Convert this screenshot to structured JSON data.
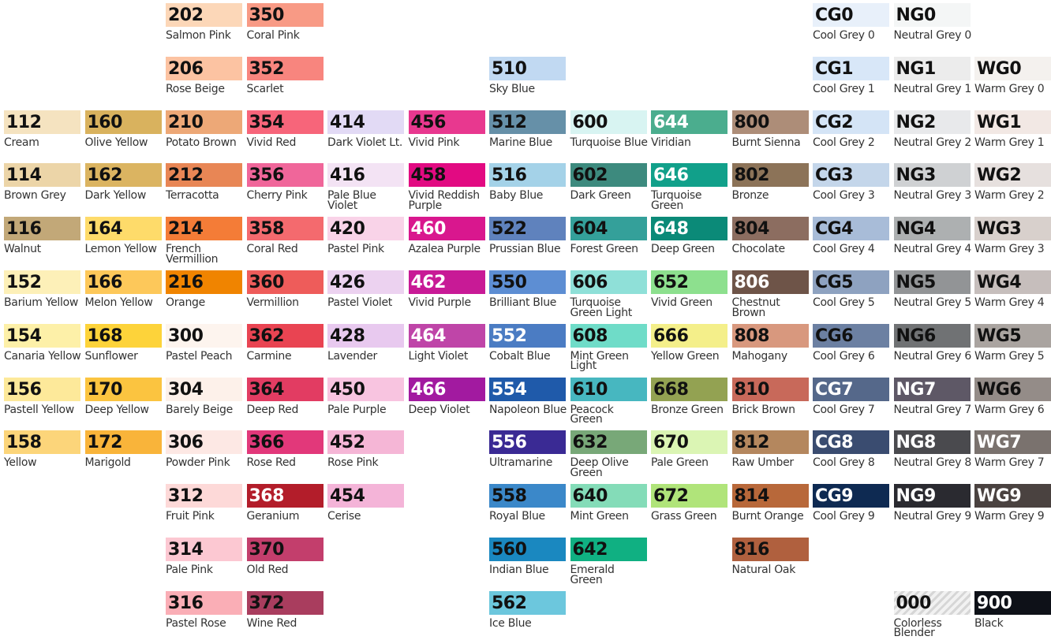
{
  "columns": [
    [
      null,
      null,
      {
        "code": "112",
        "name": "Cream",
        "color": "#f5e3c0"
      },
      {
        "code": "114",
        "name": "Brown Grey",
        "color": "#ecd5a8"
      },
      {
        "code": "116",
        "name": "Walnut",
        "color": "#c2a878"
      },
      {
        "code": "152",
        "name": "Barium Yellow",
        "color": "#fdf0b8"
      },
      {
        "code": "154",
        "name": "Canaria Yellow",
        "color": "#fdf0a8"
      },
      {
        "code": "156",
        "name": "Pastell Yellow",
        "color": "#fde99a"
      },
      {
        "code": "158",
        "name": "Yellow",
        "color": "#fcd57a"
      }
    ],
    [
      null,
      null,
      {
        "code": "160",
        "name": "Olive Yellow",
        "color": "#d9b25e"
      },
      {
        "code": "162",
        "name": "Dark Yellow",
        "color": "#dbb461"
      },
      {
        "code": "164",
        "name": "Lemon Yellow",
        "color": "#fedb6a"
      },
      {
        "code": "166",
        "name": "Melon Yellow",
        "color": "#fdc85a"
      },
      {
        "code": "168",
        "name": "Sunflower",
        "color": "#fdd33a"
      },
      {
        "code": "170",
        "name": "Deep Yellow",
        "color": "#fbc440"
      },
      {
        "code": "172",
        "name": "Marigold",
        "color": "#f9b43a"
      }
    ],
    [
      {
        "code": "202",
        "name": "Salmon Pink",
        "color": "#fcd7b8"
      },
      {
        "code": "206",
        "name": "Rose Beige",
        "color": "#fcc3a2"
      },
      {
        "code": "210",
        "name": "Potato Brown",
        "color": "#eda877"
      },
      {
        "code": "212",
        "name": "Terracotta",
        "color": "#e88655"
      },
      {
        "code": "214",
        "name": "French Vermillion",
        "color": "#f47c37"
      },
      {
        "code": "216",
        "name": "Orange",
        "color": "#f08400"
      },
      {
        "code": "300",
        "name": "Pastel Peach",
        "color": "#fdf4ee"
      },
      {
        "code": "304",
        "name": "Barely Beige",
        "color": "#fdf1ea"
      },
      {
        "code": "306",
        "name": "Powder Pink",
        "color": "#fde8e4"
      },
      {
        "code": "312",
        "name": "Fruit Pink",
        "color": "#fdd9d8"
      },
      {
        "code": "314",
        "name": "Pale Pink",
        "color": "#fcc8d2"
      },
      {
        "code": "316",
        "name": "Pastel Rose",
        "color": "#faaeb6"
      }
    ],
    [
      {
        "code": "350",
        "name": "Coral Pink",
        "color": "#f89a85"
      },
      {
        "code": "352",
        "name": "Scarlet",
        "color": "#f8857e"
      },
      {
        "code": "354",
        "name": "Vivid Red",
        "color": "#f7657a"
      },
      {
        "code": "356",
        "name": "Cherry Pink",
        "color": "#f0669a"
      },
      {
        "code": "358",
        "name": "Coral Red",
        "color": "#f46a6e"
      },
      {
        "code": "360",
        "name": "Vermillion",
        "color": "#ee5c5a"
      },
      {
        "code": "362",
        "name": "Carmine",
        "color": "#e94452"
      },
      {
        "code": "364",
        "name": "Deep Red",
        "color": "#e23c62"
      },
      {
        "code": "366",
        "name": "Rose Red",
        "color": "#e2387a"
      },
      {
        "code": "368",
        "name": "Geranium",
        "color": "#b31d2a",
        "light": true
      },
      {
        "code": "370",
        "name": "Old Red",
        "color": "#c33e6c"
      },
      {
        "code": "372",
        "name": "Wine Red",
        "color": "#a93d5e"
      }
    ],
    [
      null,
      null,
      {
        "code": "414",
        "name": "Dark Violet Lt.",
        "color": "#e2daf5"
      },
      {
        "code": "416",
        "name": "Pale Blue Violet",
        "color": "#f3e3f4"
      },
      {
        "code": "420",
        "name": "Pastel Pink",
        "color": "#f9d3e8"
      },
      {
        "code": "426",
        "name": "Pastel Violet",
        "color": "#ecd2f0"
      },
      {
        "code": "428",
        "name": "Lavender",
        "color": "#e8c9ef"
      },
      {
        "code": "450",
        "name": "Pale Purple",
        "color": "#f8c4e0"
      },
      {
        "code": "452",
        "name": "Rose Pink",
        "color": "#f5b6d6"
      },
      {
        "code": "454",
        "name": "Cerise",
        "color": "#f4b4d8"
      }
    ],
    [
      null,
      null,
      {
        "code": "456",
        "name": "Vivid Pink",
        "color": "#e8388f"
      },
      {
        "code": "458",
        "name": "Vivid Reddish Purple",
        "color": "#e20a82"
      },
      {
        "code": "460",
        "name": "Azalea Purple",
        "color": "#d9178e",
        "light": true
      },
      {
        "code": "462",
        "name": "Vivid Purple",
        "color": "#c81a96",
        "light": true
      },
      {
        "code": "464",
        "name": "Light Violet",
        "color": "#bf45a8",
        "light": true
      },
      {
        "code": "466",
        "name": "Deep Violet",
        "color": "#a21aa0",
        "light": true
      }
    ],
    [
      null,
      {
        "code": "510",
        "name": "Sky Blue",
        "color": "#c1d9f2"
      },
      {
        "code": "512",
        "name": "Marine Blue",
        "color": "#6690a8"
      },
      {
        "code": "516",
        "name": "Baby Blue",
        "color": "#a4d2e8"
      },
      {
        "code": "522",
        "name": "Prussian Blue",
        "color": "#5f82bd"
      },
      {
        "code": "550",
        "name": "Brilliant Blue",
        "color": "#5d8ed3"
      },
      {
        "code": "552",
        "name": "Cobalt Blue",
        "color": "#4b7cc3",
        "light": true
      },
      {
        "code": "554",
        "name": "Napoleon Blue",
        "color": "#1f5aaa",
        "light": true
      },
      {
        "code": "556",
        "name": "Ultramarine",
        "color": "#3a2a94",
        "light": true
      },
      {
        "code": "558",
        "name": "Royal Blue",
        "color": "#3b88c9"
      },
      {
        "code": "560",
        "name": "Indian Blue",
        "color": "#1a88c0"
      },
      {
        "code": "562",
        "name": "Ice Blue",
        "color": "#6cc7dd"
      }
    ],
    [
      null,
      null,
      {
        "code": "600",
        "name": "Turquoise Blue",
        "color": "#d8f4f2"
      },
      {
        "code": "602",
        "name": "Dark Green",
        "color": "#3d8a7e"
      },
      {
        "code": "604",
        "name": "Forest Green",
        "color": "#34a09a"
      },
      {
        "code": "606",
        "name": "Turquoise Green Light",
        "color": "#8fe0d8"
      },
      {
        "code": "608",
        "name": "Mint Green Light",
        "color": "#6fdcc8"
      },
      {
        "code": "610",
        "name": "Peacock Green",
        "color": "#47b7c0"
      },
      {
        "code": "632",
        "name": "Deep Olive Green",
        "color": "#78a878"
      },
      {
        "code": "640",
        "name": "Mint Green",
        "color": "#84dcb8"
      },
      {
        "code": "642",
        "name": "Emerald Green",
        "color": "#10b082"
      }
    ],
    [
      null,
      null,
      {
        "code": "644",
        "name": "Viridian",
        "color": "#4bad8e",
        "light": true
      },
      {
        "code": "646",
        "name": "Turquoise Green",
        "color": "#11a08a",
        "light": true
      },
      {
        "code": "648",
        "name": "Deep Green",
        "color": "#0b8a78",
        "light": true
      },
      {
        "code": "652",
        "name": "Vivid Green",
        "color": "#8de08e"
      },
      {
        "code": "666",
        "name": "Yellow Green",
        "color": "#f4ef8a"
      },
      {
        "code": "668",
        "name": "Bronze Green",
        "color": "#93a252"
      },
      {
        "code": "670",
        "name": "Pale Green",
        "color": "#dbf5b4"
      },
      {
        "code": "672",
        "name": "Grass Green",
        "color": "#b0e47a"
      }
    ],
    [
      null,
      null,
      {
        "code": "800",
        "name": "Burnt Sienna",
        "color": "#ad8d78"
      },
      {
        "code": "802",
        "name": "Bronze",
        "color": "#8c7358"
      },
      {
        "code": "804",
        "name": "Chocolate",
        "color": "#8c6d60"
      },
      {
        "code": "806",
        "name": "Chestnut Brown",
        "color": "#6e5448",
        "light": true
      },
      {
        "code": "808",
        "name": "Mahogany",
        "color": "#d8987e"
      },
      {
        "code": "810",
        "name": "Brick Brown",
        "color": "#c8695a"
      },
      {
        "code": "812",
        "name": "Raw Umber",
        "color": "#b4875e"
      },
      {
        "code": "814",
        "name": "Burnt Orange",
        "color": "#b8683a"
      },
      {
        "code": "816",
        "name": "Natural Oak",
        "color": "#b0603e"
      }
    ],
    [
      {
        "code": "CG0",
        "name": "Cool Grey 0",
        "color": "#e8f0fa"
      },
      {
        "code": "CG1",
        "name": "Cool Grey 1",
        "color": "#d8e7f8"
      },
      {
        "code": "CG2",
        "name": "Cool Grey 2",
        "color": "#d4e4f6"
      },
      {
        "code": "CG3",
        "name": "Cool Grey 3",
        "color": "#c4d6ea"
      },
      {
        "code": "CG4",
        "name": "Cool Grey 4",
        "color": "#a8bcd8"
      },
      {
        "code": "CG5",
        "name": "Cool Grey 5",
        "color": "#8ea2c0"
      },
      {
        "code": "CG6",
        "name": "Cool Grey 6",
        "color": "#6c80a2"
      },
      {
        "code": "CG7",
        "name": "Cool Grey 7",
        "color": "#55688a",
        "light": true
      },
      {
        "code": "CG8",
        "name": "Cool Grey 8",
        "color": "#3a4c70",
        "light": true
      },
      {
        "code": "CG9",
        "name": "Cool  Grey 9",
        "color": "#0e2a52",
        "light": true
      }
    ],
    [
      {
        "code": "NG0",
        "name": "Neutral Grey 0",
        "color": "#f4f6f6"
      },
      {
        "code": "NG1",
        "name": "Neutral Grey 1",
        "color": "#ececec"
      },
      {
        "code": "NG2",
        "name": "Neutral Grey 2",
        "color": "#e8e9eb"
      },
      {
        "code": "NG3",
        "name": "Neutral Grey 3",
        "color": "#cfd1d3"
      },
      {
        "code": "NG4",
        "name": "Neutral Grey 4",
        "color": "#adb0b1"
      },
      {
        "code": "NG5",
        "name": "Neutral Grey 5",
        "color": "#929496"
      },
      {
        "code": "NG6",
        "name": "Neutral Grey 6",
        "color": "#707274"
      },
      {
        "code": "NG7",
        "name": "Neutral Grey 7",
        "color": "#5e5866",
        "light": true
      },
      {
        "code": "NG8",
        "name": "Neutral Grey 8",
        "color": "#4a4a4e",
        "light": true
      },
      {
        "code": "NG9",
        "name": "Neutral Grey 9",
        "color": "#2a2a30",
        "light": true
      },
      null,
      {
        "code": "000",
        "name": "Colorless Blender",
        "color": "#e6e6e6",
        "hatched": true
      }
    ],
    [
      null,
      {
        "code": "WG0",
        "name": "Warm Grey 0",
        "color": "#f4f1ee"
      },
      {
        "code": "WG1",
        "name": "Warm Grey 1",
        "color": "#f2e8e4"
      },
      {
        "code": "WG2",
        "name": "Warm Grey 2",
        "color": "#e6e0de"
      },
      {
        "code": "WG3",
        "name": "Warm Grey 3",
        "color": "#d8d0cc"
      },
      {
        "code": "WG4",
        "name": "Warm Grey 4",
        "color": "#c6bebc"
      },
      {
        "code": "WG5",
        "name": "Warm Grey 5",
        "color": "#aaa4a0"
      },
      {
        "code": "WG6",
        "name": "Warm Grey 6",
        "color": "#948c88"
      },
      {
        "code": "WG7",
        "name": "Warm Grey 7",
        "color": "#7a726e",
        "light": true
      },
      {
        "code": "WG9",
        "name": "Warm Grey 9",
        "color": "#4a4240",
        "light": true
      },
      null,
      {
        "code": "900",
        "name": "Black",
        "color": "#0e1118",
        "light": true
      }
    ]
  ]
}
